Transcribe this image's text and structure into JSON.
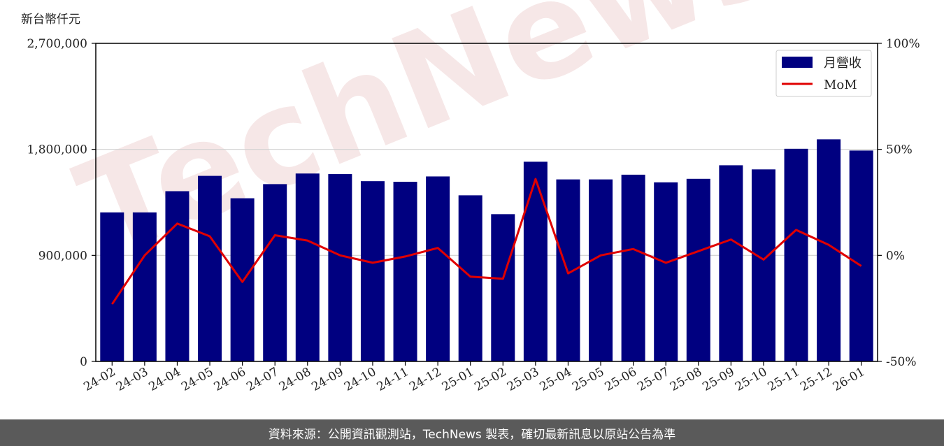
{
  "chart_data": {
    "type": "bar",
    "unit_label": "新台幣仟元",
    "categories": [
      "24-02",
      "24-03",
      "24-04",
      "24-05",
      "24-06",
      "24-07",
      "24-08",
      "24-09",
      "24-10",
      "24-11",
      "24-12",
      "25-01",
      "25-02",
      "25-03",
      "25-04",
      "25-05",
      "25-06",
      "25-07",
      "25-08",
      "25-09",
      "25-10",
      "25-11",
      "25-12",
      "26-01"
    ],
    "series": [
      {
        "name": "月營收",
        "type": "bar",
        "axis": "left",
        "color": "#000080",
        "values": [
          1265000,
          1265000,
          1445000,
          1575000,
          1385000,
          1505000,
          1595000,
          1590000,
          1530000,
          1525000,
          1570000,
          1410000,
          1250000,
          1695000,
          1545000,
          1545000,
          1585000,
          1520000,
          1550000,
          1665000,
          1630000,
          1805000,
          1885000,
          1790000
        ]
      },
      {
        "name": "MoM",
        "type": "line",
        "axis": "right",
        "color": "#e00000",
        "values": [
          -23,
          0,
          15,
          9,
          -12.5,
          9.5,
          7,
          0,
          -3.5,
          -0.5,
          3.5,
          -10,
          -11,
          36,
          -8.5,
          0,
          3,
          -3.5,
          2,
          7.5,
          -2,
          12,
          5,
          -5
        ]
      }
    ],
    "left_axis": {
      "ylim": [
        0,
        2700000
      ],
      "ticks": [
        "0",
        "900,000",
        "1,800,000",
        "2,700,000"
      ],
      "tick_values": [
        0,
        900000,
        1800000,
        2700000
      ]
    },
    "right_axis": {
      "ylim": [
        -50,
        100
      ],
      "ticks": [
        "-50%",
        "0%",
        "50%",
        "100%"
      ],
      "tick_values": [
        -50,
        0,
        50,
        100
      ]
    },
    "grid": "horizontal",
    "legend_position": "top-right"
  },
  "watermark": "TechNews",
  "footer": {
    "text": "資料來源：公開資訊觀測站，TechNews 製表，確切最新訊息以原站公告為準"
  }
}
